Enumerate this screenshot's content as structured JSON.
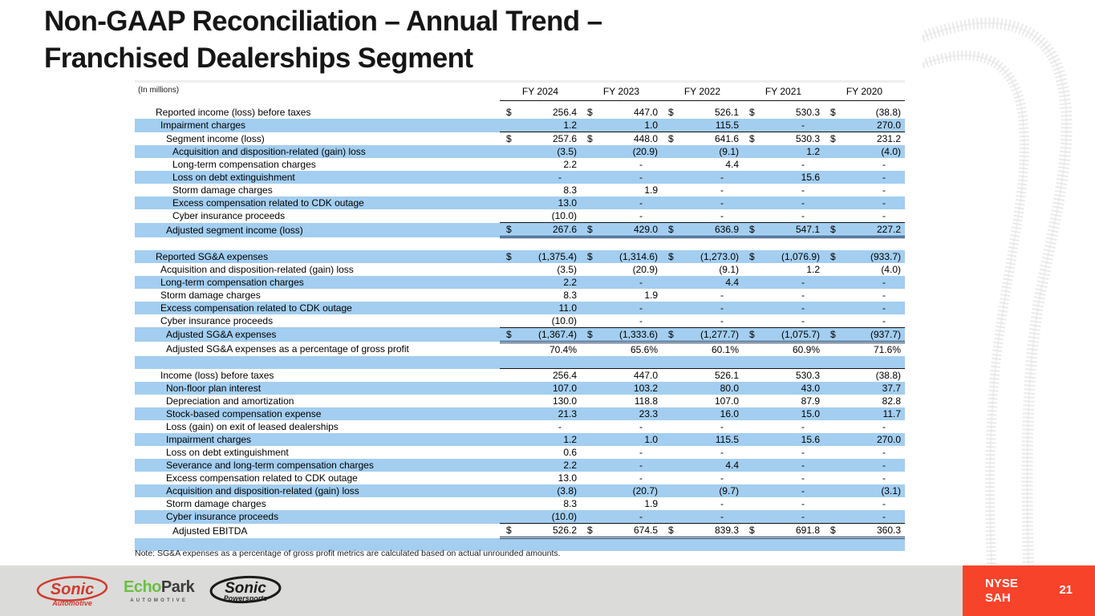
{
  "slide": {
    "title_line1": "Non-GAAP Reconciliation – Annual Trend –",
    "title_line2": "Franchised Dealerships Segment",
    "note": "Note: SG&A expenses as a percentage of gross profit metrics are calculated based on actual unrounded amounts.",
    "ticker_line1": "NYSE",
    "ticker_line2": "SAH",
    "page_number": "21"
  },
  "colors": {
    "row_highlight": "#A3CEF0",
    "badge_red": "#F8432B",
    "footer_gray": "#DBDBD9",
    "sonic_red": "#CE3A2E",
    "echopark_green": "#6CBE45",
    "rule_single": "#111111",
    "rule_double": "#16365c"
  },
  "logos": {
    "sonic_automotive": {
      "line1": "Sonic",
      "line2": "Automotive"
    },
    "echopark": {
      "part_green": "Echo",
      "part_dark": "Park",
      "sub": "AUTOMOTIVE"
    },
    "sonic_powersports": {
      "line1": "Sonic",
      "line2": "Powersports"
    }
  },
  "table": {
    "unit_label": "(In millions)",
    "years": [
      "FY 2024",
      "FY 2023",
      "FY 2022",
      "FY 2021",
      "FY 2020"
    ],
    "rows": [
      {
        "label": "Reported income (loss) before taxes",
        "indent": 1,
        "dollar": true,
        "shade": "white",
        "values": [
          "256.4",
          "447.0",
          "526.1",
          "530.3",
          "(38.8)"
        ]
      },
      {
        "label": "Impairment charges",
        "indent": 2,
        "dollar": false,
        "shade": "blue",
        "border": "bottom",
        "values": [
          "1.2",
          "1.0",
          "115.5",
          "-",
          "270.0"
        ]
      },
      {
        "label": "Segment income (loss)",
        "indent": 3,
        "dollar": true,
        "shade": "white",
        "values": [
          "257.6",
          "448.0",
          "641.6",
          "530.3",
          "231.2"
        ]
      },
      {
        "label": "Acquisition and disposition-related (gain) loss",
        "indent": 4,
        "dollar": false,
        "shade": "blue",
        "values": [
          "(3.5)",
          "(20.9)",
          "(9.1)",
          "1.2",
          "(4.0)"
        ]
      },
      {
        "label": "Long-term compensation charges",
        "indent": 4,
        "dollar": false,
        "shade": "white",
        "values": [
          "2.2",
          "-",
          "4.4",
          "-",
          "-"
        ]
      },
      {
        "label": "Loss on debt extinguishment",
        "indent": 4,
        "dollar": false,
        "shade": "blue",
        "values": [
          "-",
          "-",
          "-",
          "15.6",
          "-"
        ]
      },
      {
        "label": "Storm damage charges",
        "indent": 4,
        "dollar": false,
        "shade": "white",
        "values": [
          "8.3",
          "1.9",
          "-",
          "-",
          "-"
        ]
      },
      {
        "label": "Excess compensation related to CDK outage",
        "indent": 4,
        "dollar": false,
        "shade": "blue",
        "values": [
          "13.0",
          "-",
          "-",
          "-",
          "-"
        ]
      },
      {
        "label": "Cyber insurance proceeds",
        "indent": 4,
        "dollar": false,
        "shade": "white",
        "border": "bottom",
        "values": [
          "(10.0)",
          "-",
          "-",
          "-",
          "-"
        ]
      },
      {
        "label": "Adjusted segment income (loss)",
        "indent": 3,
        "dollar": true,
        "shade": "blue",
        "border": "double",
        "values": [
          "267.6",
          "429.0",
          "636.9",
          "547.1",
          "227.2"
        ]
      },
      {
        "spacer": true,
        "shade": "white"
      },
      {
        "label": "Reported SG&A expenses",
        "indent": 1,
        "dollar": true,
        "shade": "blue",
        "values": [
          "(1,375.4)",
          "(1,314.6)",
          "(1,273.0)",
          "(1,076.9)",
          "(933.7)"
        ]
      },
      {
        "label": "Acquisition and disposition-related (gain) loss",
        "indent": 2,
        "dollar": false,
        "shade": "white",
        "values": [
          "(3.5)",
          "(20.9)",
          "(9.1)",
          "1.2",
          "(4.0)"
        ]
      },
      {
        "label": "Long-term compensation charges",
        "indent": 2,
        "dollar": false,
        "shade": "blue",
        "values": [
          "2.2",
          "-",
          "4.4",
          "-",
          "-"
        ]
      },
      {
        "label": "Storm damage charges",
        "indent": 2,
        "dollar": false,
        "shade": "white",
        "values": [
          "8.3",
          "1.9",
          "-",
          "-",
          "-"
        ]
      },
      {
        "label": "Excess compensation related to CDK outage",
        "indent": 2,
        "dollar": false,
        "shade": "blue",
        "values": [
          "11.0",
          "-",
          "-",
          "-",
          "-"
        ]
      },
      {
        "label": "Cyber insurance proceeds",
        "indent": 2,
        "dollar": false,
        "shade": "white",
        "border": "bottom",
        "values": [
          "(10.0)",
          "-",
          "-",
          "-",
          "-"
        ]
      },
      {
        "label": "Adjusted SG&A expenses",
        "indent": 3,
        "dollar": true,
        "shade": "blue",
        "border": "double",
        "values": [
          "(1,367.4)",
          "(1,333.6)",
          "(1,277.7)",
          "(1,075.7)",
          "(937.7)"
        ]
      },
      {
        "label": "Adjusted SG&A expenses as a percentage of gross profit",
        "indent": 3,
        "dollar": false,
        "shade": "white",
        "values": [
          "70.4%",
          "65.6%",
          "60.1%",
          "60.9%",
          "71.6%"
        ]
      },
      {
        "spacer": true,
        "shade": "blue"
      },
      {
        "label": "Income (loss) before taxes",
        "indent": 2,
        "dollar": false,
        "shade": "white",
        "border": "top",
        "values": [
          "256.4",
          "447.0",
          "526.1",
          "530.3",
          "(38.8)"
        ]
      },
      {
        "label": "Non-floor plan interest",
        "indent": 3,
        "dollar": false,
        "shade": "blue",
        "values": [
          "107.0",
          "103.2",
          "80.0",
          "43.0",
          "37.7"
        ]
      },
      {
        "label": "Depreciation and amortization",
        "indent": 3,
        "dollar": false,
        "shade": "white",
        "values": [
          "130.0",
          "118.8",
          "107.0",
          "87.9",
          "82.8"
        ]
      },
      {
        "label": "Stock-based compensation expense",
        "indent": 3,
        "dollar": false,
        "shade": "blue",
        "values": [
          "21.3",
          "23.3",
          "16.0",
          "15.0",
          "11.7"
        ]
      },
      {
        "label": "Loss (gain) on exit of leased dealerships",
        "indent": 3,
        "dollar": false,
        "shade": "white",
        "values": [
          "-",
          "-",
          "-",
          "-",
          "-"
        ]
      },
      {
        "label": "Impairment charges",
        "indent": 3,
        "dollar": false,
        "shade": "blue",
        "values": [
          "1.2",
          "1.0",
          "115.5",
          "15.6",
          "270.0"
        ]
      },
      {
        "label": "Loss on debt extinguishment",
        "indent": 3,
        "dollar": false,
        "shade": "white",
        "values": [
          "0.6",
          "-",
          "-",
          "-",
          "-"
        ]
      },
      {
        "label": "Severance and long-term compensation charges",
        "indent": 3,
        "dollar": false,
        "shade": "blue",
        "values": [
          "2.2",
          "-",
          "4.4",
          "-",
          "-"
        ]
      },
      {
        "label": "Excess compensation related to CDK outage",
        "indent": 3,
        "dollar": false,
        "shade": "white",
        "values": [
          "13.0",
          "-",
          "-",
          "-",
          "-"
        ]
      },
      {
        "label": "Acquisition and disposition-related (gain) loss",
        "indent": 3,
        "dollar": false,
        "shade": "blue",
        "values": [
          "(3.8)",
          "(20.7)",
          "(9.7)",
          "-",
          "(3.1)"
        ]
      },
      {
        "label": "Storm damage charges",
        "indent": 3,
        "dollar": false,
        "shade": "white",
        "values": [
          "8.3",
          "1.9",
          "-",
          "-",
          "-"
        ]
      },
      {
        "label": "Cyber insurance proceeds",
        "indent": 3,
        "dollar": false,
        "shade": "blue",
        "border": "bottom",
        "values": [
          "(10.0)",
          "-",
          "-",
          "-",
          "-"
        ]
      },
      {
        "label": "Adjusted EBITDA",
        "indent": 4,
        "dollar": true,
        "shade": "white",
        "border": "double",
        "values": [
          "526.2",
          "674.5",
          "839.3",
          "691.8",
          "360.3"
        ]
      },
      {
        "spacer": true,
        "shade": "blue"
      }
    ]
  }
}
